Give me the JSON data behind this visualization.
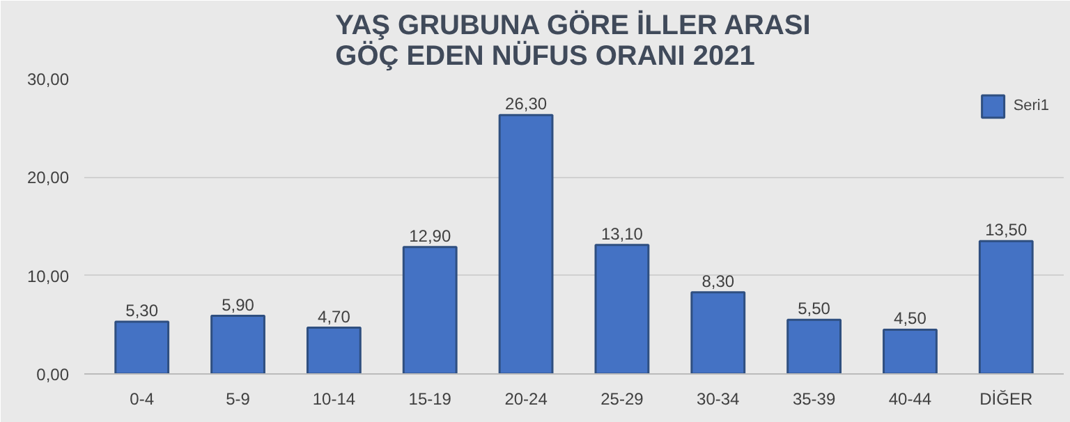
{
  "chart_data": {
    "type": "bar",
    "title": "YAŞ GRUBUNA GÖRE İLLER ARASI\nGÖÇ EDEN NÜFUS ORANI 2021",
    "categories": [
      "0-4",
      "5-9",
      "10-14",
      "15-19",
      "20-24",
      "25-29",
      "30-34",
      "35-39",
      "40-44",
      "DİĞER"
    ],
    "series": [
      {
        "name": "Seri1",
        "color": "#4472c4",
        "values": [
          5.3,
          5.9,
          4.7,
          12.9,
          26.3,
          13.1,
          8.3,
          5.5,
          4.5,
          13.5
        ],
        "value_labels": [
          "5,30",
          "5,90",
          "4,70",
          "12,90",
          "26,30",
          "13,10",
          "8,30",
          "5,50",
          "4,50",
          "13,50"
        ]
      }
    ],
    "ylim": [
      0,
      30
    ],
    "yticks": [
      {
        "value": 0,
        "label": "0,00"
      },
      {
        "value": 10,
        "label": "10,00"
      },
      {
        "value": 20,
        "label": "20,00"
      },
      {
        "value": 30,
        "label": "30,00"
      }
    ],
    "grid": "y",
    "legend": "top right"
  }
}
